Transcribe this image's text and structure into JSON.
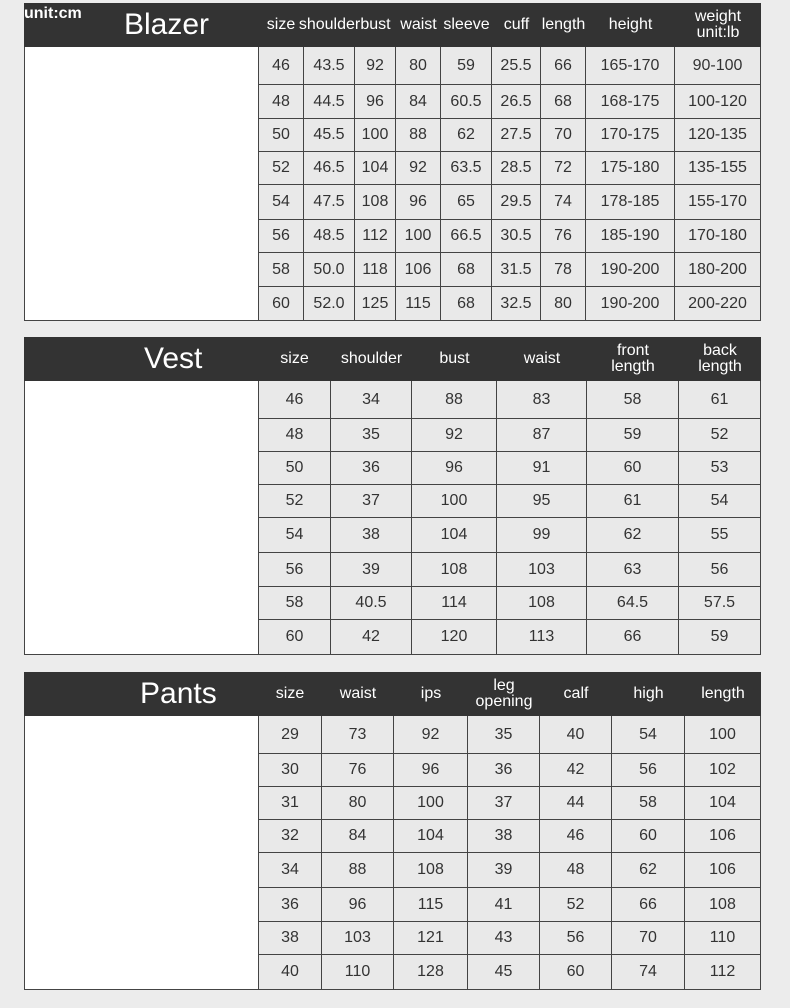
{
  "unit_label": "unit:cm",
  "tables": [
    {
      "title": "Blazer",
      "headers": [
        "size",
        "shoulder",
        "bust",
        "waist",
        "sleeve",
        "cuff",
        "length",
        "height",
        "weight\nunit:lb"
      ],
      "rows": [
        [
          "46",
          "43.5",
          "92",
          "80",
          "59",
          "25.5",
          "66",
          "165-170",
          "90-100"
        ],
        [
          "48",
          "44.5",
          "96",
          "84",
          "60.5",
          "26.5",
          "68",
          "168-175",
          "100-120"
        ],
        [
          "50",
          "45.5",
          "100",
          "88",
          "62",
          "27.5",
          "70",
          "170-175",
          "120-135"
        ],
        [
          "52",
          "46.5",
          "104",
          "92",
          "63.5",
          "28.5",
          "72",
          "175-180",
          "135-155"
        ],
        [
          "54",
          "47.5",
          "108",
          "96",
          "65",
          "29.5",
          "74",
          "178-185",
          "155-170"
        ],
        [
          "56",
          "48.5",
          "112",
          "100",
          "66.5",
          "30.5",
          "76",
          "185-190",
          "170-180"
        ],
        [
          "58",
          "50.0",
          "118",
          "106",
          "68",
          "31.5",
          "78",
          "190-200",
          "180-200"
        ],
        [
          "60",
          "52.0",
          "125",
          "115",
          "68",
          "32.5",
          "80",
          "190-200",
          "200-220"
        ]
      ]
    },
    {
      "title": "Vest",
      "headers": [
        "size",
        "shoulder",
        "bust",
        "waist",
        "front\nlength",
        "back\nlength"
      ],
      "rows": [
        [
          "46",
          "34",
          "88",
          "83",
          "58",
          "61"
        ],
        [
          "48",
          "35",
          "92",
          "87",
          "59",
          "52"
        ],
        [
          "50",
          "36",
          "96",
          "91",
          "60",
          "53"
        ],
        [
          "52",
          "37",
          "100",
          "95",
          "61",
          "54"
        ],
        [
          "54",
          "38",
          "104",
          "99",
          "62",
          "55"
        ],
        [
          "56",
          "39",
          "108",
          "103",
          "63",
          "56"
        ],
        [
          "58",
          "40.5",
          "114",
          "108",
          "64.5",
          "57.5"
        ],
        [
          "60",
          "42",
          "120",
          "113",
          "66",
          "59"
        ]
      ]
    },
    {
      "title": "Pants",
      "headers": [
        "size",
        "waist",
        "ips",
        "leg\nopening",
        "calf",
        "high",
        "length"
      ],
      "rows": [
        [
          "29",
          "73",
          "92",
          "35",
          "40",
          "54",
          "100"
        ],
        [
          "30",
          "76",
          "96",
          "36",
          "42",
          "56",
          "102"
        ],
        [
          "31",
          "80",
          "100",
          "37",
          "44",
          "58",
          "104"
        ],
        [
          "32",
          "84",
          "104",
          "38",
          "46",
          "60",
          "106"
        ],
        [
          "34",
          "88",
          "108",
          "39",
          "48",
          "62",
          "106"
        ],
        [
          "36",
          "96",
          "115",
          "41",
          "52",
          "66",
          "108"
        ],
        [
          "38",
          "103",
          "121",
          "43",
          "56",
          "70",
          "110"
        ],
        [
          "40",
          "110",
          "128",
          "45",
          "60",
          "74",
          "112"
        ]
      ]
    }
  ]
}
